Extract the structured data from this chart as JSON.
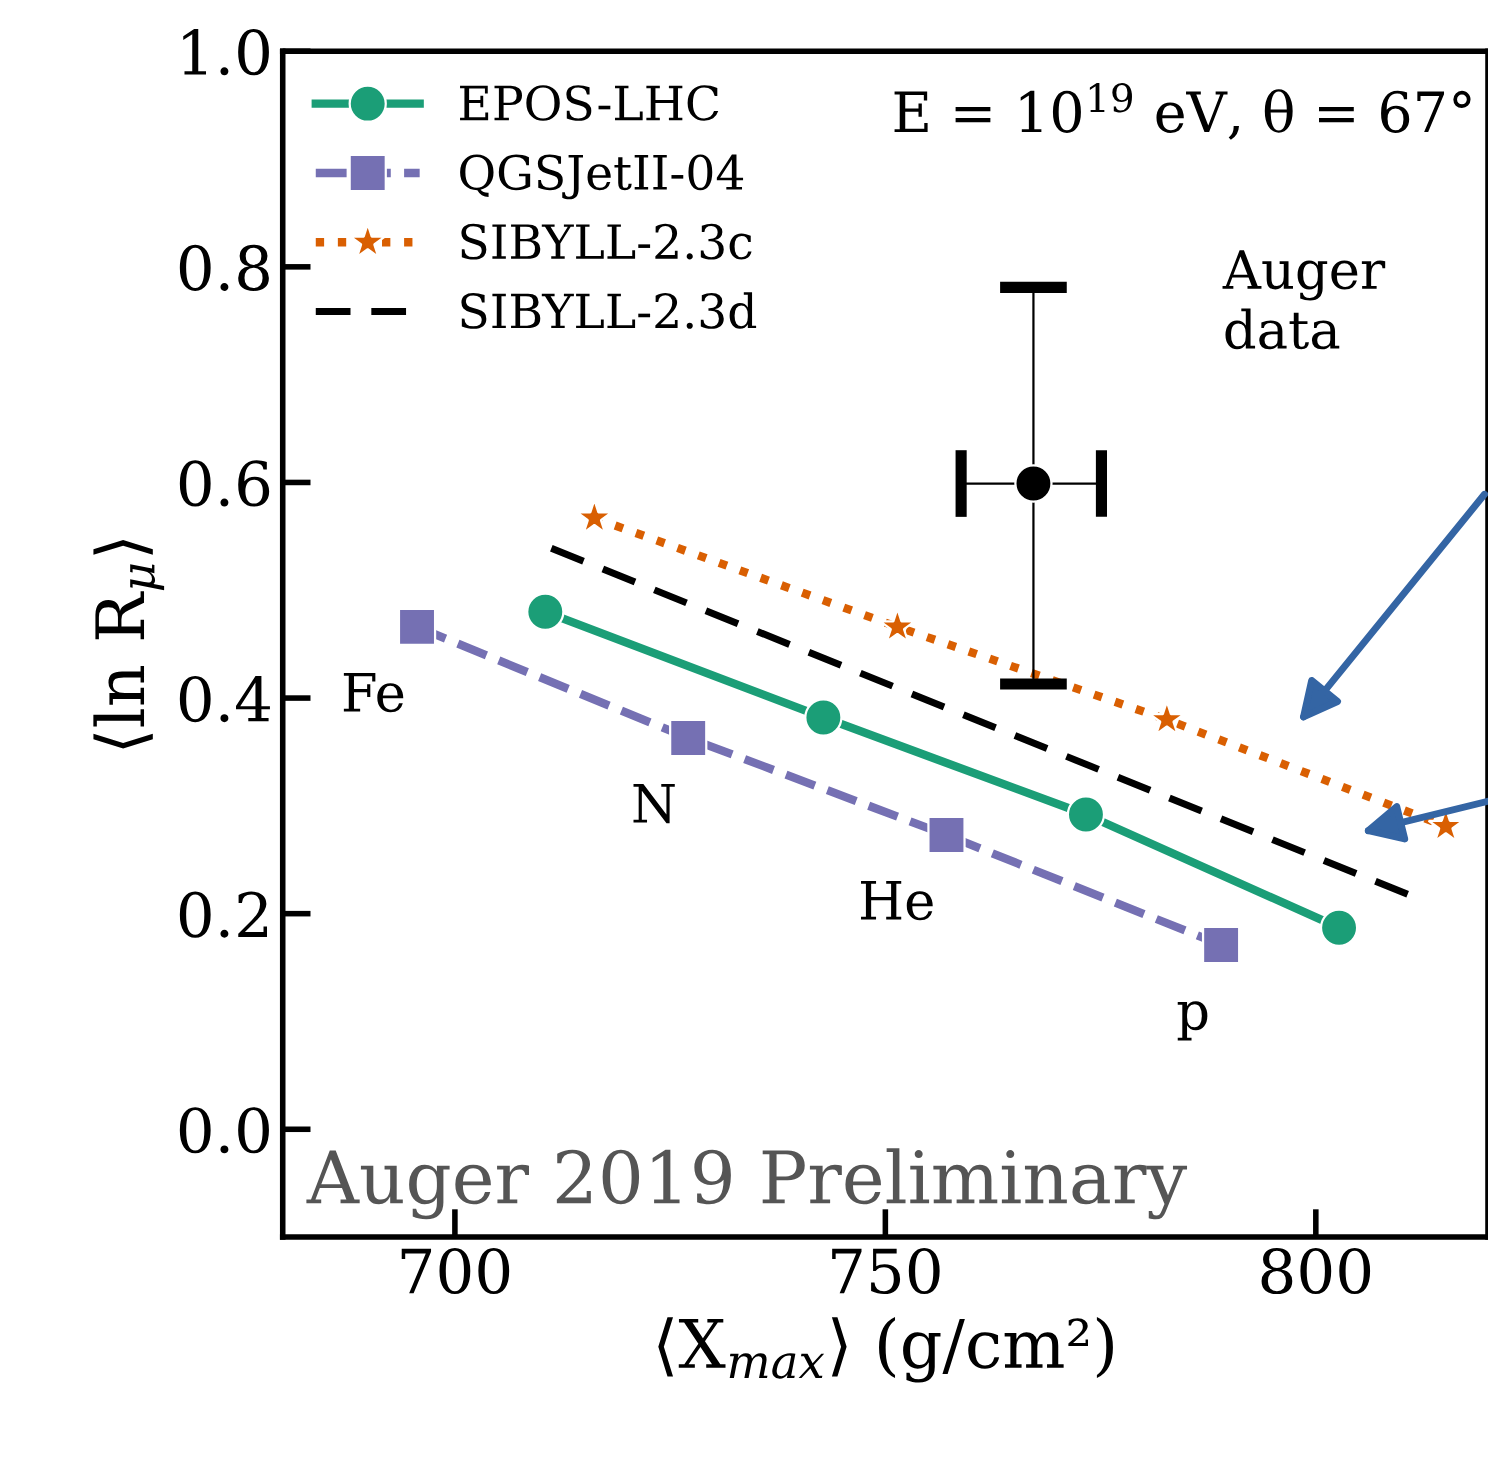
{
  "chart_data": {
    "type": "line",
    "xlabel": "⟨X$_{max}$⟩ (g/cm²)",
    "ylabel": "⟨ln R$_{μ}$⟩",
    "xlim": [
      680,
      820
    ],
    "ylim": [
      -0.1,
      1.0
    ],
    "xticks": [
      700,
      750,
      800
    ],
    "yticks": [
      {
        "value": 0,
        "label": "0.0"
      },
      {
        "value": 0.2,
        "label": "0.2"
      },
      {
        "value": 0.4,
        "label": "0.4"
      },
      {
        "value": 0.6,
        "label": "0.6"
      },
      {
        "value": 0.8,
        "label": "0.8"
      },
      {
        "value": 1.0,
        "label": "1.0"
      }
    ],
    "legend": "top left",
    "series": [
      {
        "name": "EPOS-LHC",
        "color": "#1b9e77",
        "marker": "circle",
        "line_style": "solid",
        "x": [
          710.5,
          742.8,
          773.3,
          802.7
        ],
        "values": [
          0.48,
          0.382,
          0.292,
          0.187
        ]
      },
      {
        "name": "QGSJetII-04",
        "color": "#7570b3",
        "marker": "square",
        "line_style": "dashed",
        "x": [
          695.6,
          727.1,
          757.1,
          789.0
        ],
        "values": [
          0.466,
          0.363,
          0.273,
          0.171
        ]
      },
      {
        "name": "SIBYLL-2.3c",
        "color": "#d95f02",
        "marker": "star",
        "line_style": "dotted",
        "x": [
          716.2,
          751.4,
          782.7,
          815.1
        ],
        "values": [
          0.567,
          0.466,
          0.38,
          0.281
        ]
      },
      {
        "name": "SIBYLL-2.3d",
        "color": "#000000",
        "marker": "none",
        "line_style": "dashed",
        "x": [
          711.2,
          811.9
        ],
        "values": [
          0.539,
          0.214
        ]
      },
      {
        "type": "scatter",
        "color": "#000000",
        "marker": "circle",
        "x": [
          767.2
        ],
        "values": [
          0.599
        ],
        "errors": [
          [
            0.413,
            0.781
          ]
        ],
        "xerrors": [
          [
            758.8,
            775.1
          ]
        ]
      }
    ],
    "annotations": [
      "E = 10$^{19}$ eV, θ = 67°",
      "Auger data",
      {
        "text": "Fe",
        "x": 695.6,
        "y": 0.466
      },
      {
        "text": "N",
        "x": 727.1,
        "y": 0.363
      },
      {
        "text": "He",
        "x": 757.1,
        "y": 0.273
      },
      {
        "text": "p",
        "x": 789.0,
        "y": 0.171
      },
      "Auger 2019 Preliminary"
    ]
  }
}
